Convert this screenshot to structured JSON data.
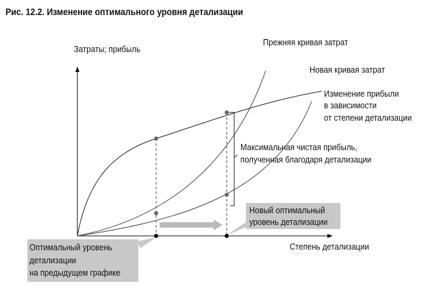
{
  "title": "Рис. 12.2. Изменение оптимального уровня детализации",
  "y_axis_label": "Затраты; прибыль",
  "x_axis_label": "Степень детализации",
  "curves": {
    "old_cost": "Прежняя кривая затрат",
    "new_cost": "Новая кривая затрат",
    "profit": [
      "Изменение прибыли",
      "в зависимости",
      "от степени детализации"
    ]
  },
  "annotations": {
    "max_profit": [
      "Максимальная чистая прибыль,",
      "полученная благодаря детализации"
    ],
    "new_optimum": [
      "Новый оптимальный",
      "уровень детализации"
    ],
    "old_optimum": [
      "Оптимальный уровень",
      "детализации",
      "на предыдущем графике"
    ]
  },
  "colors": {
    "line": "#333333",
    "dot": "#666666",
    "box": "#c8c8c8",
    "arrow": "#bbbbbb"
  }
}
